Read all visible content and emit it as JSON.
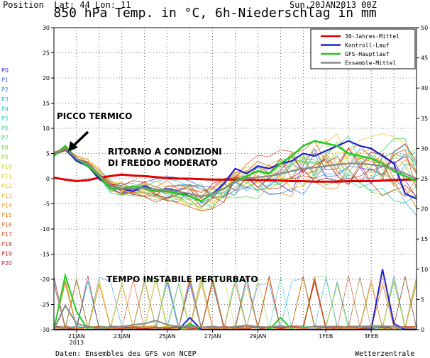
{
  "header": {
    "position": "Position  Lat: 44 Lon: 11",
    "run": "Sun,20JAN2013 00Z",
    "title": "850 hPa Temp. in °C, 6h-Niederschlag in mm"
  },
  "footer": {
    "source": "Daten: Ensembles des GFS von NCEP",
    "brand": "Wetterzentrale"
  },
  "colors": {
    "clim": "#e00000",
    "control": "#2020d0",
    "oper": "#22cc22",
    "mean": "#888888",
    "frame": "#000000"
  },
  "chart_data": {
    "type": "line",
    "ylim_left": [
      -30,
      30
    ],
    "ylim_right": [
      0,
      50
    ],
    "yticks_left": [
      "30",
      "25",
      "20",
      "15",
      "10",
      "5",
      "0",
      "-5",
      "-10",
      "-15",
      "-20",
      "-25",
      "-30"
    ],
    "yticks_right": [
      "50",
      "45",
      "40",
      "35",
      "30",
      "25",
      "20",
      "15",
      "10",
      "5",
      "0"
    ],
    "xticks": [
      "21JAN 2013",
      "23JAN",
      "25JAN",
      "27JAN",
      "29JAN",
      "1FEB",
      "3FEB"
    ],
    "legend": [
      "30-Jahres-Mittel",
      "Kontroll-Lauf",
      "GFS-Hauptlauf",
      "Ensemble-Mittel"
    ],
    "members": [
      "P0",
      "P1",
      "P2",
      "P3",
      "P4",
      "P5",
      "P6",
      "P7",
      "P8",
      "P9",
      "P10",
      "P11",
      "P12",
      "P13",
      "P14",
      "P15",
      "P16",
      "P17",
      "P18",
      "P19",
      "P20"
    ],
    "member_colors": [
      "#3a2dcc",
      "#3a5ee8",
      "#2f8cf0",
      "#24a8e6",
      "#1ec2d4",
      "#20d0b8",
      "#2ed49a",
      "#46d46e",
      "#6ad24c",
      "#94d43c",
      "#b8d430",
      "#d8d22a",
      "#ecc424",
      "#f0ae22",
      "#f2961e",
      "#ec7c1c",
      "#e2621c",
      "#d84a1c",
      "#cc361e",
      "#bd241e",
      "#b0181c"
    ],
    "annotations": [
      "PICCO TERMICO",
      "RITORNO A CONDIZIONI",
      "DI FREDDO MODERATO",
      "TEMPO INSTABILE PERTURBATO"
    ],
    "temp_x": [
      0,
      0.5,
      1,
      1.5,
      2,
      2.5,
      3,
      3.5,
      4,
      4.5,
      5,
      5.5,
      6,
      6.5,
      7,
      7.5,
      8,
      8.5,
      9,
      9.5,
      10,
      10.5,
      11,
      11.5,
      12,
      12.5,
      13,
      13.5,
      14,
      14.5,
      15,
      15.5,
      16
    ],
    "series": [
      {
        "name": "30-Jahres-Mittel",
        "values": [
          0.2,
          -0.2,
          -0.5,
          -0.3,
          0.2,
          0.5,
          0.8,
          0.6,
          0.5,
          0.3,
          0.1,
          0,
          0,
          -0.1,
          -0.2,
          -0.2,
          -0.2,
          -0.2,
          -0.3,
          -0.3,
          -0.4,
          -0.5,
          -0.5,
          -0.6,
          -0.6,
          -0.6,
          -0.5,
          -0.5,
          -0.5,
          -0.4,
          -0.3,
          -0.2,
          -0.2
        ]
      },
      {
        "name": "Kontroll-Lauf",
        "values": [
          5,
          6,
          3.5,
          2.5,
          0,
          -1.5,
          -2,
          -2.5,
          -1.5,
          -2.5,
          -2,
          -2.5,
          -3.5,
          -4.5,
          -3,
          -1,
          2,
          1,
          2.5,
          2,
          3,
          3.5,
          5,
          4.5,
          5.5,
          6.5,
          7.5,
          6.5,
          6,
          4.5,
          3,
          -3,
          -4
        ]
      },
      {
        "name": "GFS-Hauptlauf",
        "values": [
          4.5,
          6.5,
          4,
          2.5,
          0.5,
          -2,
          -2,
          -1.5,
          -2,
          -2.5,
          -2.5,
          -3,
          -3.5,
          -4.5,
          -3,
          -2,
          -0.5,
          0.5,
          1.5,
          1,
          3,
          4.5,
          6.5,
          7.5,
          7,
          6.5,
          5,
          4.5,
          4,
          3,
          1.5,
          0.5,
          -0.5
        ]
      },
      {
        "name": "Ensemble-Mittel",
        "values": [
          5,
          6,
          4,
          3,
          0.8,
          -1.5,
          -2,
          -2,
          -1.8,
          -2.2,
          -2.2,
          -2.6,
          -3,
          -3.6,
          -3,
          -2,
          -0.6,
          0,
          0.3,
          0.5,
          1,
          1.5,
          2,
          2.2,
          2.5,
          2.8,
          3,
          3,
          2.8,
          2.5,
          2,
          1,
          0
        ]
      }
    ],
    "precip_x": [
      0,
      0.5,
      1,
      1.5,
      2,
      2.5,
      3,
      3.5,
      4,
      4.5,
      5,
      5.5,
      6,
      6.5,
      7,
      7.5,
      8,
      8.5,
      9,
      9.5,
      10,
      10.5,
      11,
      11.5,
      12,
      12.5,
      13,
      13.5,
      14,
      14.5,
      15,
      15.5,
      16
    ],
    "precip_series": [
      {
        "name": "GFS-Hauptlauf",
        "values": [
          0,
          9,
          3,
          0,
          0,
          0,
          0,
          0,
          0,
          0,
          0,
          0,
          1,
          0,
          0,
          0,
          0,
          0,
          0,
          0,
          2,
          0,
          0,
          0,
          0,
          0,
          0,
          0,
          0,
          0,
          0,
          0,
          0
        ]
      },
      {
        "name": "Kontroll-Lauf",
        "values": [
          0,
          0,
          0,
          0,
          0,
          0,
          0,
          0,
          0,
          0,
          0,
          0,
          2,
          0,
          0,
          0,
          0,
          0,
          0,
          0,
          0,
          0,
          0,
          0,
          0,
          0,
          0,
          0,
          0,
          10,
          1,
          0,
          0
        ]
      },
      {
        "name": "Ensemble-Mittel",
        "values": [
          0,
          4,
          1,
          0.5,
          0.2,
          0.5,
          0.5,
          0.8,
          1,
          1.5,
          0.8,
          0.5,
          0.6,
          0.4,
          0.5,
          0.3,
          0.5,
          0.7,
          0.5,
          0.4,
          0.6,
          0.4,
          0.3,
          0.5,
          0.5,
          0.4,
          0.4,
          0.5,
          0.6,
          0.6,
          0.5,
          0.3,
          0.2
        ]
      }
    ]
  }
}
